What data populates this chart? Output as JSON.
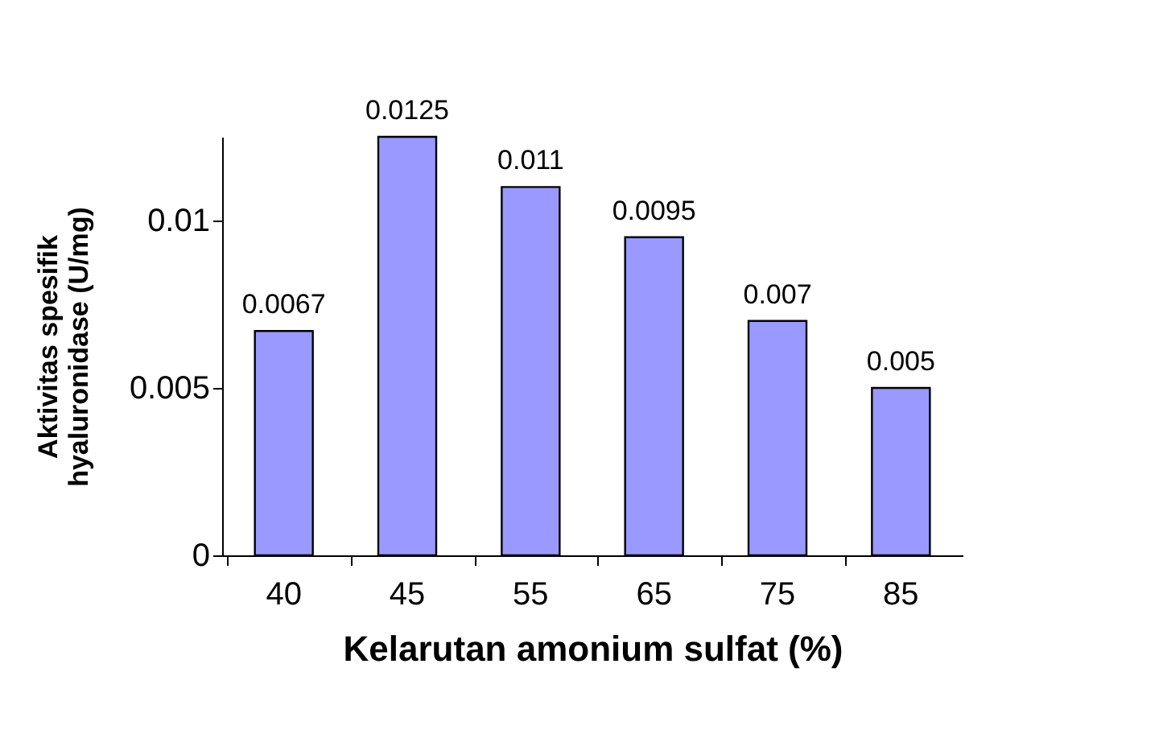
{
  "chart_data": {
    "type": "bar",
    "xlabel": "Kelarutan amonium sulfat (%)",
    "ylabel": "Aktivitas spesifik\nhyaluronidase (U/mg)",
    "categories": [
      "40",
      "45",
      "55",
      "65",
      "75",
      "85"
    ],
    "values": [
      0.0067,
      0.0125,
      0.011,
      0.0095,
      0.007,
      0.005
    ],
    "color": "#9999ff",
    "ylim": [
      0,
      0.0125
    ],
    "yticks": [
      0,
      0.005,
      0.01
    ],
    "grid": false,
    "data_labels": true
  }
}
